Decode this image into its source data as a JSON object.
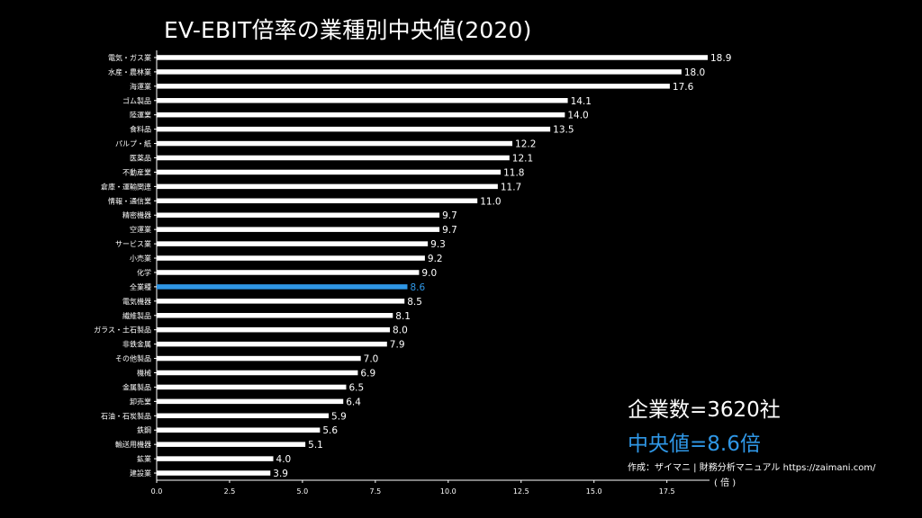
{
  "title": "EV-EBIT倍率の業種別中央値(2020)",
  "count_label": "企業数=3620社",
  "median_label": "中央値=8.6倍",
  "credit": "作成：ザイマニ | 財務分析マニュアル https://zaimani.com/",
  "unit_label": "( 倍 )",
  "colors": {
    "background": "#000000",
    "bar": "#ffffff",
    "highlight": "#2f97e6",
    "text": "#ffffff"
  },
  "chart_data": {
    "type": "bar",
    "orientation": "horizontal",
    "title": "EV-EBIT倍率の業種別中央値(2020)",
    "xlabel": "( 倍 )",
    "ylabel": "",
    "xlim": [
      0,
      18.9
    ],
    "xticks": [
      "0.0",
      "2.5",
      "5.0",
      "7.5",
      "10.0",
      "12.5",
      "15.0",
      "17.5"
    ],
    "grid": false,
    "highlight_category": "全業種",
    "categories": [
      "電気・ガス業",
      "水産・農林業",
      "海運業",
      "ゴム製品",
      "陸運業",
      "食料品",
      "パルプ・紙",
      "医薬品",
      "不動産業",
      "倉庫・運輸関連",
      "情報・通信業",
      "精密機器",
      "空運業",
      "サービス業",
      "小売業",
      "化学",
      "全業種",
      "電気機器",
      "繊維製品",
      "ガラス・土石製品",
      "非鉄金属",
      "その他製品",
      "機械",
      "金属製品",
      "卸売業",
      "石油・石炭製品",
      "鉄鋼",
      "輸送用機器",
      "鉱業",
      "建設業"
    ],
    "values": [
      18.9,
      18.0,
      17.6,
      14.1,
      14.0,
      13.5,
      12.2,
      12.1,
      11.8,
      11.7,
      11.0,
      9.7,
      9.7,
      9.3,
      9.2,
      9.0,
      8.6,
      8.5,
      8.1,
      8.0,
      7.9,
      7.0,
      6.9,
      6.5,
      6.4,
      5.9,
      5.6,
      5.1,
      4.0,
      3.9
    ],
    "value_labels": [
      "18.9",
      "18.0",
      "17.6",
      "14.1",
      "14.0",
      "13.5",
      "12.2",
      "12.1",
      "11.8",
      "11.7",
      "11.0",
      "9.7",
      "9.7",
      "9.3",
      "9.2",
      "9.0",
      "8.6",
      "8.5",
      "8.1",
      "8.0",
      "7.9",
      "7.0",
      "6.9",
      "6.5",
      "6.4",
      "5.9",
      "5.6",
      "5.1",
      "4.0",
      "3.9"
    ]
  }
}
